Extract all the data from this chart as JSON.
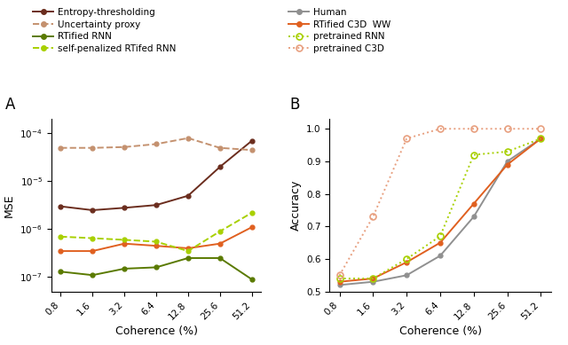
{
  "x_labels": [
    "0.8",
    "1.6",
    "3.2",
    "6.4",
    "12.8",
    "25.6",
    "51.2"
  ],
  "x_vals": [
    0,
    1,
    2,
    3,
    4,
    5,
    6
  ],
  "panel_A": {
    "entropy_thresholding": [
      3e-06,
      2.5e-06,
      2.8e-06,
      3.2e-06,
      5e-06,
      2e-05,
      7e-05
    ],
    "uncertainty_proxy": [
      5e-05,
      5e-05,
      5.2e-05,
      6e-05,
      8e-05,
      5e-05,
      4.5e-05
    ],
    "rtified_rnn": [
      1.3e-07,
      1.1e-07,
      1.5e-07,
      1.6e-07,
      2.5e-07,
      2.5e-07,
      9e-08
    ],
    "self_penalized_rtifed_rnn": [
      7e-07,
      6.5e-07,
      6e-07,
      5.5e-07,
      3.5e-07,
      9e-07,
      2.2e-06
    ],
    "rtified_c3d_ww": [
      3.5e-07,
      3.5e-07,
      5e-07,
      4.5e-07,
      4e-07,
      5e-07,
      1.1e-06
    ],
    "ylim": [
      5e-08,
      0.0002
    ],
    "ylabel": "MSE",
    "xlabel": "Coherence (%)"
  },
  "panel_B": {
    "human": [
      0.52,
      0.53,
      0.55,
      0.61,
      0.73,
      0.9,
      0.97
    ],
    "rtified_c3d_ww": [
      0.53,
      0.54,
      0.59,
      0.65,
      0.77,
      0.89,
      0.97
    ],
    "pretrained_rnn": [
      0.54,
      0.54,
      0.6,
      0.67,
      0.92,
      0.93,
      0.97
    ],
    "pretrained_c3d": [
      0.55,
      0.73,
      0.97,
      1.0,
      1.0,
      1.0,
      1.0
    ],
    "ylim": [
      0.5,
      1.03
    ],
    "yticks": [
      0.5,
      0.6,
      0.7,
      0.8,
      0.9,
      1.0
    ],
    "ylabel": "Accuracy",
    "xlabel": "Coherence (%)"
  },
  "colors": {
    "entropy_thresholding": "#6B2D1E",
    "uncertainty_proxy": "#C4916F",
    "rtified_rnn": "#5A7A00",
    "self_penalized_rtifed_rnn": "#A8D000",
    "human": "#909090",
    "rtified_c3d_ww": "#E06020",
    "pretrained_rnn": "#A8D000",
    "pretrained_c3d": "#E8A080"
  }
}
